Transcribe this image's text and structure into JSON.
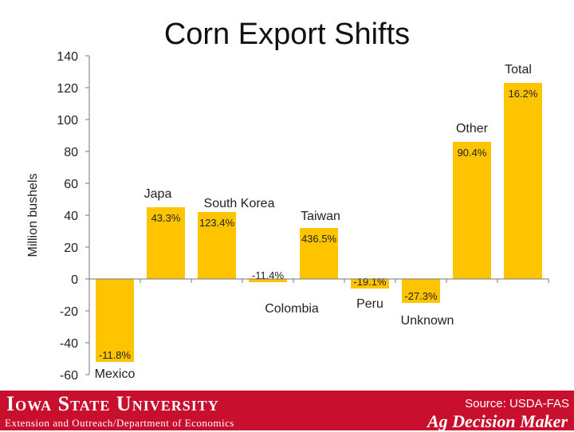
{
  "slide": {
    "title": "Corn Export Shifts"
  },
  "footer": {
    "university": "Iowa State University",
    "department": "Extension and Outreach/Department of Economics",
    "source": "Source: USDA-FAS",
    "program": "Ag Decision Maker"
  },
  "colors": {
    "bar": "#ffc400",
    "footer_bg": "#c8102e",
    "axis": "#777777"
  },
  "chart_data": {
    "type": "bar",
    "title": "Corn Export Shifts",
    "ylabel": "Million bushels",
    "xlabel": "",
    "ylim": [
      -60,
      140
    ],
    "yticks": [
      -60,
      -40,
      -20,
      0,
      20,
      40,
      60,
      80,
      100,
      120,
      140
    ],
    "grid": false,
    "legend": "none",
    "categories": [
      "Mexico",
      "Japa",
      "South Korea",
      "Colombia",
      "Taiwan",
      "Peru",
      "Unknown",
      "Other",
      "Total"
    ],
    "values": [
      -52,
      45,
      42,
      -2,
      32,
      -6,
      -15,
      86,
      123
    ],
    "data_labels": [
      "-11.8%",
      "43.3%",
      "123.4%",
      "-11.4%",
      "436.5%",
      "-19.1%",
      "-27.3%",
      "90.4%",
      "16.2%"
    ]
  }
}
